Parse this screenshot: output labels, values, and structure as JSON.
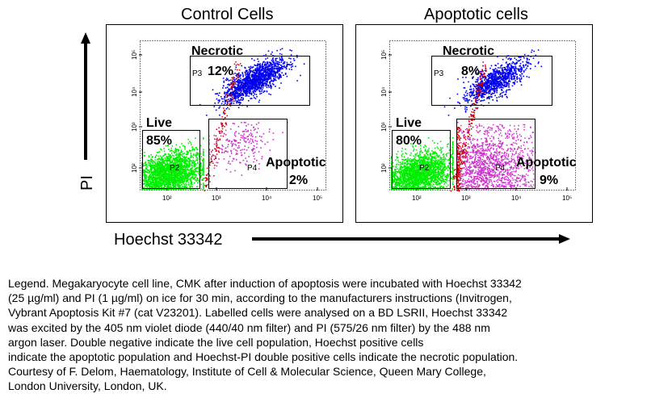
{
  "chart_data": [
    {
      "type": "scatter",
      "title": "Control Cells",
      "xlabel": "Hoechst 33342",
      "ylabel": "PI",
      "x_scale": "log",
      "y_scale": "log",
      "x_ticks": [
        "10²",
        "10³",
        "10⁴",
        "10⁵"
      ],
      "y_ticks": [
        "10²",
        "10³",
        "10⁴",
        "10⁵"
      ],
      "gates": [
        {
          "gate": "P3",
          "population": "Necrotic",
          "percent": "12%",
          "color": "#0000ee"
        },
        {
          "gate": "P2",
          "population": "Live",
          "percent": "85%",
          "color": "#00ee00"
        },
        {
          "gate": "P4",
          "population": "Apoptotic",
          "percent": "2%",
          "color": "#cc33cc"
        }
      ]
    },
    {
      "type": "scatter",
      "title": "Apoptotic cells",
      "xlabel": "Hoechst 33342",
      "ylabel": "PI",
      "x_scale": "log",
      "y_scale": "log",
      "x_ticks": [
        "10²",
        "10³",
        "10⁴",
        "10⁵"
      ],
      "y_ticks": [
        "10²",
        "10³",
        "10⁴",
        "10⁵"
      ],
      "gates": [
        {
          "gate": "P3",
          "population": "Necrotic",
          "percent": "8%",
          "color": "#0000ee"
        },
        {
          "gate": "P2",
          "population": "Live",
          "percent": "80%",
          "color": "#00ee00"
        },
        {
          "gate": "P4",
          "population": "Apoptotic",
          "percent": "9%",
          "color": "#cc33cc"
        }
      ]
    }
  ],
  "colors": {
    "live": "#00ee00",
    "necrotic": "#0000ee",
    "apoptotic": "#cc33cc",
    "transition": "#cc0000"
  },
  "legend_lines": [
    "Legend. Megakaryocyte cell line, CMK after induction of apoptosis were incubated with Hoechst 33342",
    "(25 µg/ml) and PI (1 µg/ml) on ice for 30 min,  according to the manufacturers instructions (Invitrogen,",
    " Vybrant Apoptosis Kit #7 (cat V23201). Labelled cells were analysed on a BD LSRII, Hoechst 33342",
    "was excited by the 405 nm violet diode (440/40 nm filter) and PI (575/26 nm filter) by the 488 nm",
    "argon laser. Double negative indicate the live cell population, Hoechst positive cells",
    "indicate the apoptotic population and Hoechst-PI double positive cells indicate the necrotic population.",
    "Courtesy of F. Delom, Haematology, Institute of Cell & Molecular Science, Queen Mary College,",
    "London University, London, UK."
  ]
}
